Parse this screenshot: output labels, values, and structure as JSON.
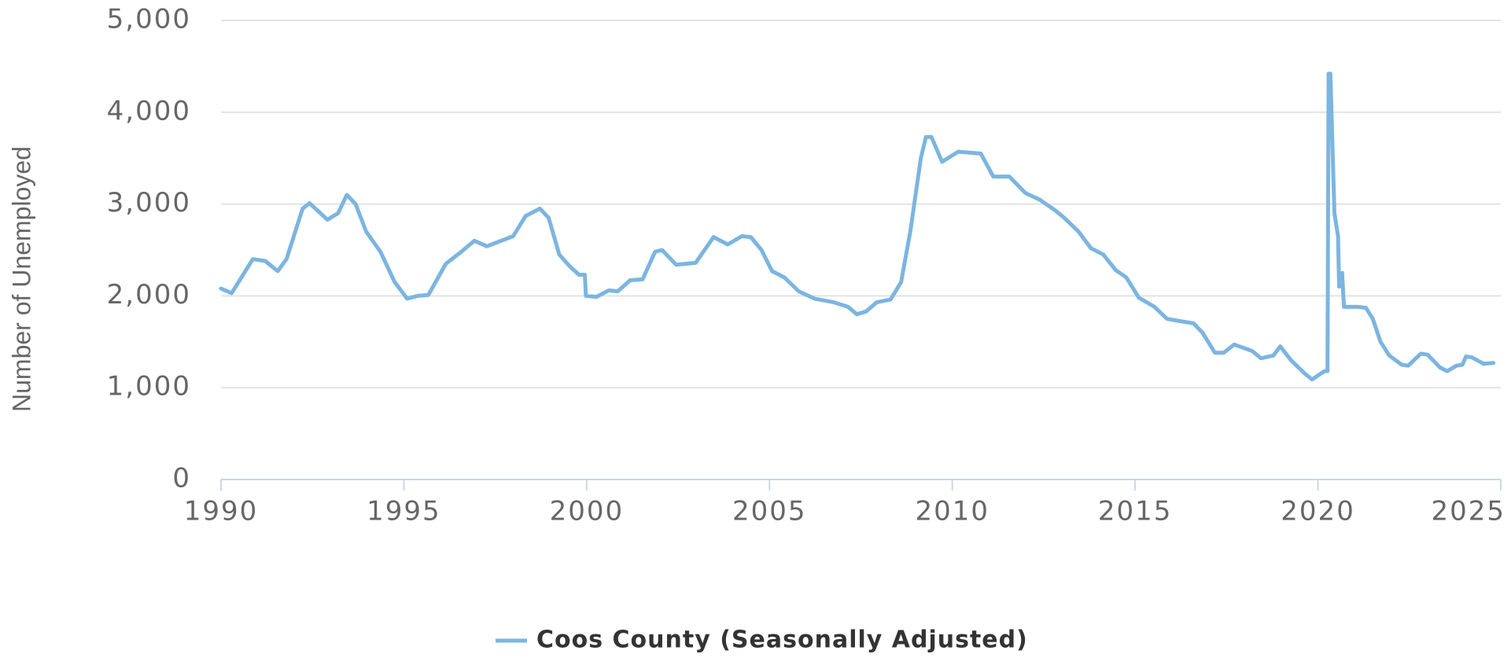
{
  "chart_data": {
    "type": "line",
    "y_label": "Number of Unemployed",
    "x": [
      1990.0,
      1990.29,
      1990.87,
      1991.21,
      1991.55,
      1991.79,
      1992.23,
      1992.42,
      1992.91,
      1993.2,
      1993.44,
      1993.68,
      1993.97,
      1994.36,
      1994.75,
      1995.09,
      1995.38,
      1995.67,
      1996.15,
      1996.54,
      1996.93,
      1997.27,
      1997.66,
      1997.99,
      1998.33,
      1998.72,
      1998.96,
      1999.25,
      1999.54,
      1999.79,
      1999.95,
      1999.98,
      2000.27,
      2000.61,
      2000.85,
      2001.19,
      2001.53,
      2001.87,
      2002.06,
      2002.45,
      2002.98,
      2003.47,
      2003.86,
      2004.24,
      2004.49,
      2004.78,
      2005.07,
      2005.41,
      2005.8,
      2006.23,
      2006.76,
      2007.15,
      2007.39,
      2007.64,
      2007.93,
      2008.31,
      2008.6,
      2008.85,
      2009.14,
      2009.28,
      2009.43,
      2009.72,
      2010.16,
      2010.49,
      2010.78,
      2011.12,
      2011.56,
      2012.0,
      2012.38,
      2012.82,
      2013.06,
      2013.45,
      2013.79,
      2014.13,
      2014.47,
      2014.76,
      2015.1,
      2015.53,
      2015.87,
      2016.31,
      2016.6,
      2016.84,
      2017.18,
      2017.42,
      2017.71,
      2018.2,
      2018.44,
      2018.78,
      2018.97,
      2019.26,
      2019.65,
      2019.84,
      2020.18,
      2020.26,
      2020.29,
      2020.34,
      2020.45,
      2020.55,
      2020.58,
      2020.66,
      2020.71,
      2021.1,
      2021.31,
      2021.5,
      2021.71,
      2021.95,
      2022.29,
      2022.47,
      2022.81,
      2023.0,
      2023.34,
      2023.53,
      2023.79,
      2023.95,
      2024.05,
      2024.21,
      2024.53,
      2024.8
    ],
    "series": [
      {
        "name": "Coos County (Seasonally Adjusted)",
        "color": "#7cb5e0",
        "values": [
          2080,
          2030,
          2400,
          2380,
          2270,
          2400,
          2950,
          3010,
          2830,
          2900,
          3100,
          3000,
          2700,
          2480,
          2150,
          1970,
          2000,
          2010,
          2350,
          2470,
          2600,
          2540,
          2600,
          2650,
          2870,
          2950,
          2850,
          2450,
          2320,
          2230,
          2230,
          2000,
          1990,
          2060,
          2050,
          2170,
          2180,
          2480,
          2500,
          2340,
          2360,
          2640,
          2560,
          2650,
          2640,
          2500,
          2270,
          2200,
          2050,
          1970,
          1930,
          1880,
          1800,
          1830,
          1930,
          1960,
          2150,
          2700,
          3500,
          3730,
          3730,
          3460,
          3570,
          3560,
          3550,
          3300,
          3300,
          3120,
          3050,
          2930,
          2850,
          2700,
          2520,
          2450,
          2280,
          2200,
          1980,
          1880,
          1750,
          1720,
          1700,
          1600,
          1380,
          1380,
          1470,
          1400,
          1320,
          1350,
          1450,
          1300,
          1150,
          1090,
          1180,
          1180,
          4420,
          4420,
          2900,
          2650,
          2100,
          2250,
          1880,
          1880,
          1870,
          1750,
          1500,
          1350,
          1250,
          1240,
          1370,
          1360,
          1220,
          1180,
          1240,
          1250,
          1340,
          1330,
          1260,
          1270
        ]
      }
    ],
    "xlim": [
      1990,
      2025
    ],
    "xticks": [
      1990,
      1995,
      2000,
      2005,
      2010,
      2015,
      2020,
      2025
    ],
    "ylim": [
      0,
      5000
    ],
    "yticks": [
      0,
      {
        "value": 1000,
        "label": "1,000"
      },
      {
        "value": 2000,
        "label": "2,000"
      },
      {
        "value": 3000,
        "label": "3,000"
      },
      {
        "value": 4000,
        "label": "4,000"
      },
      {
        "value": 5000,
        "label": "5,000"
      }
    ],
    "grid": true,
    "legend": "bottom"
  }
}
